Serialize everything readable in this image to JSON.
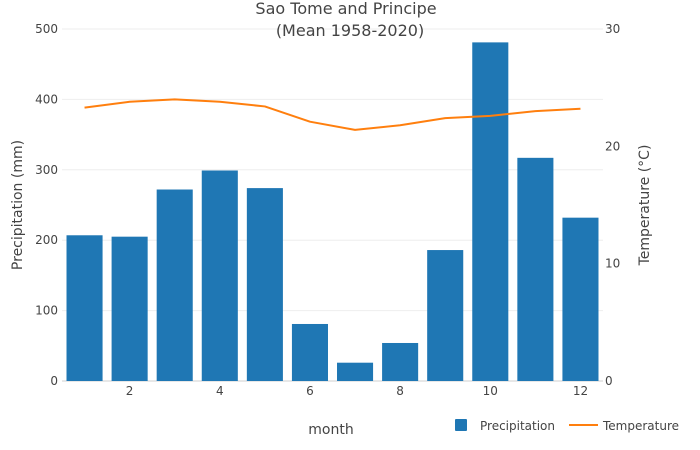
{
  "chart_data": {
    "type": "bar",
    "title": "Sao Tome and Principe",
    "subtitle": "(Mean 1958-2020)",
    "xlabel": "month",
    "ylabel": "Precipitation (mm)",
    "y2label": "Temperature (°C)",
    "x": [
      1,
      2,
      3,
      4,
      5,
      6,
      7,
      8,
      9,
      10,
      11,
      12
    ],
    "x_ticks": [
      2,
      4,
      6,
      8,
      10,
      12
    ],
    "xlim": [
      0.5,
      12.5
    ],
    "ylim": [
      0,
      500
    ],
    "y_ticks": [
      0,
      100,
      200,
      300,
      400,
      500
    ],
    "y2lim": [
      0,
      30
    ],
    "y2_ticks": [
      0,
      10,
      20,
      30
    ],
    "grid": true,
    "legend": "bottom-right",
    "series": [
      {
        "name": "Precipitation",
        "type": "bar",
        "axis": "y",
        "color": "#1f77b4",
        "values": [
          207,
          205,
          272,
          299,
          274,
          81,
          26,
          54,
          186,
          481,
          317,
          232
        ]
      },
      {
        "name": "Temperature",
        "type": "line",
        "axis": "y2",
        "color": "#ff7f0e",
        "values": [
          23.3,
          23.8,
          24.0,
          23.8,
          23.4,
          22.1,
          21.4,
          21.8,
          22.4,
          22.6,
          23.0,
          23.2
        ]
      }
    ]
  }
}
